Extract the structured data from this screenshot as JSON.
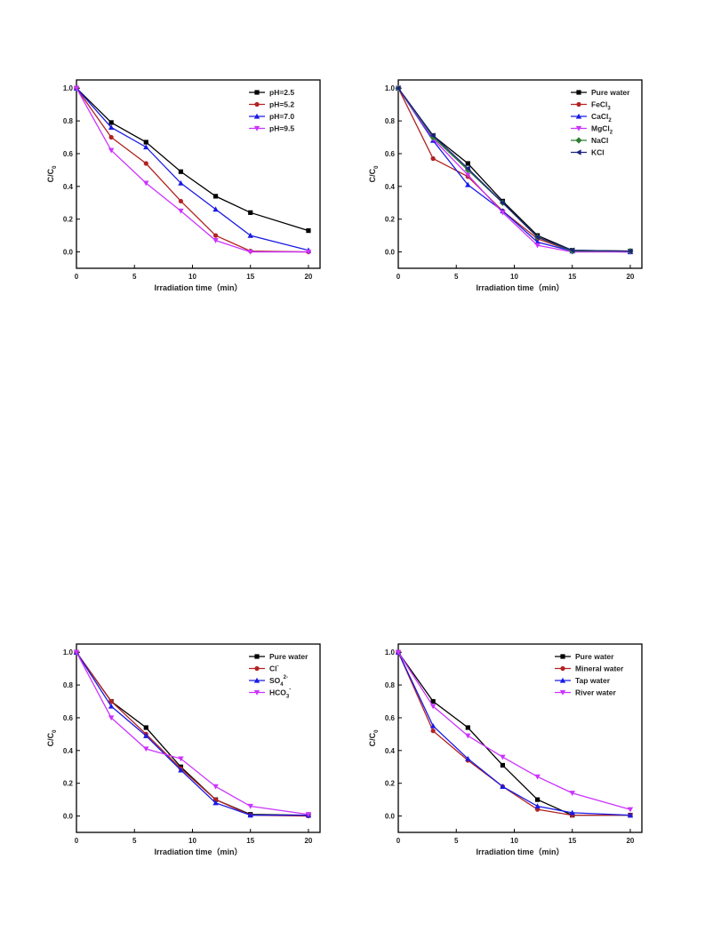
{
  "chart_data": [
    {
      "type": "line",
      "xlabel": "Irradiation time（min）",
      "ylabel": "C/C",
      "ylabel_sub": "0",
      "xlim": [
        0,
        21
      ],
      "ylim": [
        -0.1,
        1.05
      ],
      "xticks": [
        0,
        5,
        10,
        15,
        20
      ],
      "yticks": [
        0.0,
        0.2,
        0.4,
        0.6,
        0.8,
        1.0
      ],
      "legend_position": "top-right",
      "x": [
        0,
        3,
        6,
        9,
        12,
        15,
        20
      ],
      "series": [
        {
          "name": "pH=2.5",
          "name_sub": "",
          "name_sup": "",
          "color": "#000000",
          "marker": "square",
          "values": [
            1.0,
            0.79,
            0.67,
            0.49,
            0.34,
            0.24,
            0.13
          ]
        },
        {
          "name": "pH=5.2",
          "name_sub": "",
          "name_sup": "",
          "color": "#b22222",
          "marker": "circle",
          "values": [
            1.0,
            0.7,
            0.54,
            0.31,
            0.1,
            0.005,
            0.0
          ]
        },
        {
          "name": "pH=7.0",
          "name_sub": "",
          "name_sup": "",
          "color": "#1a1ae6",
          "marker": "triangle-up",
          "values": [
            1.0,
            0.76,
            0.64,
            0.42,
            0.26,
            0.1,
            0.01
          ]
        },
        {
          "name": "pH=9.5",
          "name_sub": "",
          "name_sup": "",
          "color": "#cc33ff",
          "marker": "triangle-down",
          "values": [
            1.0,
            0.62,
            0.42,
            0.25,
            0.07,
            0.0,
            0.0
          ]
        }
      ]
    },
    {
      "type": "line",
      "xlabel": "Irradiation time（min）",
      "ylabel": "C/C",
      "ylabel_sub": "0",
      "xlim": [
        0,
        21
      ],
      "ylim": [
        -0.1,
        1.05
      ],
      "xticks": [
        0,
        5,
        10,
        15,
        20
      ],
      "yticks": [
        0.0,
        0.2,
        0.4,
        0.6,
        0.8,
        1.0
      ],
      "legend_position": "top-right",
      "x": [
        0,
        3,
        6,
        9,
        12,
        15,
        20
      ],
      "series": [
        {
          "name": "Pure water",
          "name_sub": "",
          "name_sup": "",
          "color": "#000000",
          "marker": "square",
          "values": [
            1.0,
            0.71,
            0.54,
            0.31,
            0.1,
            0.01,
            0.005
          ]
        },
        {
          "name": "FeCl",
          "name_sub": "3",
          "name_sup": "",
          "color": "#b22222",
          "marker": "circle",
          "values": [
            1.0,
            0.57,
            0.46,
            0.25,
            0.08,
            0.005,
            0.0
          ]
        },
        {
          "name": "CaCl",
          "name_sub": "2",
          "name_sup": "",
          "color": "#1a1ae6",
          "marker": "triangle-up",
          "values": [
            1.0,
            0.68,
            0.41,
            0.25,
            0.06,
            0.005,
            0.0
          ]
        },
        {
          "name": "MgCl",
          "name_sub": "2",
          "name_sup": "",
          "color": "#cc33ff",
          "marker": "triangle-down",
          "values": [
            1.0,
            0.69,
            0.47,
            0.24,
            0.04,
            0.0,
            0.0
          ]
        },
        {
          "name": "NaCl",
          "name_sub": "",
          "name_sup": "",
          "color": "#2e7d32",
          "marker": "diamond",
          "values": [
            1.0,
            0.7,
            0.5,
            0.3,
            0.09,
            0.005,
            0.005
          ]
        },
        {
          "name": "KCl",
          "name_sub": "",
          "name_sup": "",
          "color": "#1a237e",
          "marker": "triangle-left",
          "values": [
            1.0,
            0.71,
            0.51,
            0.3,
            0.09,
            0.01,
            0.005
          ]
        }
      ]
    },
    {
      "type": "line",
      "xlabel": "Irradiation time（min）",
      "ylabel": "C/C",
      "ylabel_sub": "0",
      "xlim": [
        0,
        21
      ],
      "ylim": [
        -0.1,
        1.05
      ],
      "xticks": [
        0,
        5,
        10,
        15,
        20
      ],
      "yticks": [
        0.0,
        0.2,
        0.4,
        0.6,
        0.8,
        1.0
      ],
      "legend_position": "top-right",
      "x": [
        0,
        3,
        6,
        9,
        12,
        15,
        20
      ],
      "series": [
        {
          "name": "Pure water",
          "name_sub": "",
          "name_sup": "",
          "color": "#000000",
          "marker": "square",
          "values": [
            1.0,
            0.7,
            0.54,
            0.3,
            0.1,
            0.01,
            0.005
          ]
        },
        {
          "name": "Cl",
          "name_sub": "",
          "name_sup": "-",
          "color": "#b22222",
          "marker": "circle",
          "values": [
            1.0,
            0.7,
            0.5,
            0.29,
            0.1,
            0.005,
            0.0
          ]
        },
        {
          "name": "SO",
          "name_sub": "4",
          "name_sup": "2-",
          "color": "#1a1ae6",
          "marker": "triangle-up",
          "values": [
            1.0,
            0.67,
            0.49,
            0.28,
            0.08,
            0.005,
            0.005
          ]
        },
        {
          "name": "HCO",
          "name_sub": "3",
          "name_sup": "-",
          "color": "#cc33ff",
          "marker": "triangle-down",
          "values": [
            1.0,
            0.6,
            0.41,
            0.35,
            0.18,
            0.06,
            0.01
          ]
        }
      ]
    },
    {
      "type": "line",
      "xlabel": "Irradiation time（min）",
      "ylabel": "C/C",
      "ylabel_sub": "0",
      "xlim": [
        0,
        21
      ],
      "ylim": [
        -0.1,
        1.05
      ],
      "xticks": [
        0,
        5,
        10,
        15,
        20
      ],
      "yticks": [
        0.0,
        0.2,
        0.4,
        0.6,
        0.8,
        1.0
      ],
      "legend_position": "top-right",
      "x": [
        0,
        3,
        6,
        9,
        12,
        15,
        20
      ],
      "series": [
        {
          "name": "Pure water",
          "name_sub": "",
          "name_sup": "",
          "color": "#000000",
          "marker": "square",
          "values": [
            1.0,
            0.7,
            0.54,
            0.31,
            0.1,
            0.005,
            0.005
          ]
        },
        {
          "name": "Mineral water",
          "name_sub": "",
          "name_sup": "",
          "color": "#b22222",
          "marker": "circle",
          "values": [
            1.0,
            0.52,
            0.34,
            0.18,
            0.04,
            0.005,
            0.005
          ]
        },
        {
          "name": "Tap water",
          "name_sub": "",
          "name_sup": "",
          "color": "#1a1ae6",
          "marker": "triangle-up",
          "values": [
            1.0,
            0.55,
            0.35,
            0.18,
            0.06,
            0.02,
            0.005
          ]
        },
        {
          "name": "River water",
          "name_sub": "",
          "name_sup": "",
          "color": "#cc33ff",
          "marker": "triangle-down",
          "values": [
            1.0,
            0.67,
            0.49,
            0.36,
            0.24,
            0.14,
            0.04
          ]
        }
      ]
    }
  ]
}
